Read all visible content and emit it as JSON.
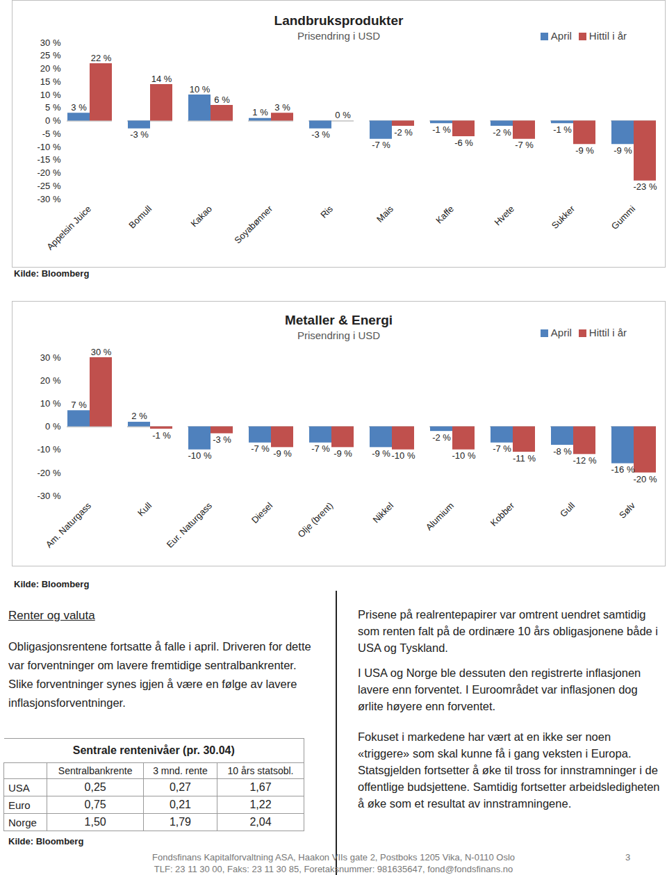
{
  "chart_data": [
    {
      "type": "bar",
      "title": "Landbruksprodukter",
      "subtitle": "Prisendring i USD",
      "categories": [
        "Appelsin Juice",
        "Bomull",
        "Kakao",
        "Soyabønner",
        "Ris",
        "Mais",
        "Kaffe",
        "Hvete",
        "Sukker",
        "Gummi"
      ],
      "series": [
        {
          "name": "April",
          "color": "#4f81bd",
          "values": [
            3,
            -3,
            10,
            1,
            -3,
            -7,
            -1,
            -2,
            -1,
            -9
          ],
          "value_labels": [
            "3 %",
            "-3 %",
            "10 %",
            "1 %",
            "-3 %",
            "-7 %",
            "-1 %",
            "-2 %",
            "-1 %",
            "-9 %"
          ]
        },
        {
          "name": "Hittil i år",
          "color": "#c0504d",
          "values": [
            22,
            14,
            6,
            3,
            0,
            -2,
            -6,
            -7,
            -9,
            -23
          ],
          "value_labels": [
            "22 %",
            "14 %",
            "6 %",
            "3 %",
            "0 %",
            "-2 %",
            "-6 %",
            "-7 %",
            "-9 %",
            "-23 %"
          ]
        }
      ],
      "ylim": [
        -30,
        30
      ],
      "yticks": [
        {
          "value": -30,
          "label": "-30 %"
        },
        {
          "value": -25,
          "label": "-25 %"
        },
        {
          "value": -20,
          "label": "-20 %"
        },
        {
          "value": -15,
          "label": "-15 %"
        },
        {
          "value": -10,
          "label": "-10 %"
        },
        {
          "value": -5,
          "label": "-5 %"
        },
        {
          "value": 0,
          "label": "0 %"
        },
        {
          "value": 5,
          "label": "5 %"
        },
        {
          "value": 10,
          "label": "10 %"
        },
        {
          "value": 15,
          "label": "15 %"
        },
        {
          "value": 20,
          "label": "20 %"
        },
        {
          "value": 25,
          "label": "25 %"
        },
        {
          "value": 30,
          "label": "30 %"
        }
      ],
      "grid": false,
      "legend": "top-right",
      "data_labels": true,
      "source": "Kilde: Bloomberg"
    },
    {
      "type": "bar",
      "title": "Metaller & Energi",
      "subtitle": "Prisendring i USD",
      "categories": [
        "Am. Naturgass",
        "Kull",
        "Eur. Naturgass",
        "Diesel",
        "Olje (brent)",
        "Nikkel",
        "Alumium",
        "Kobber",
        "Gull",
        "Sølv"
      ],
      "series": [
        {
          "name": "April",
          "color": "#4f81bd",
          "values": [
            7,
            2,
            -10,
            -7,
            -7,
            -9,
            -2,
            -7,
            -8,
            -16
          ],
          "value_labels": [
            "7 %",
            "2 %",
            "-10 %",
            "-7 %",
            "-7 %",
            "-9 %",
            "-2 %",
            "-7 %",
            "-8 %",
            "-16 %"
          ]
        },
        {
          "name": "Hittil i år",
          "color": "#c0504d",
          "values": [
            30,
            -1,
            -3,
            -9,
            -9,
            -10,
            -10,
            -11,
            -12,
            -20
          ],
          "value_labels": [
            "30 %",
            "-1 %",
            "-3 %",
            "-9 %",
            "-9 %",
            "-10 %",
            "-10 %",
            "-11 %",
            "-12 %",
            "-20 %"
          ]
        }
      ],
      "ylim": [
        -30,
        30
      ],
      "yticks": [
        {
          "value": -30,
          "label": "-30 %"
        },
        {
          "value": -20,
          "label": "-20 %"
        },
        {
          "value": -10,
          "label": "-10 %"
        },
        {
          "value": 0,
          "label": "0 %"
        },
        {
          "value": 10,
          "label": "10 %"
        },
        {
          "value": 20,
          "label": "20 %"
        },
        {
          "value": 30,
          "label": "30 %"
        }
      ],
      "grid": false,
      "legend": "top-right",
      "data_labels": true,
      "source": "Kilde: Bloomberg"
    }
  ],
  "document": {
    "section_title": "Renter og valuta",
    "left_paragraph": "Obligasjonsrentene fortsatte å falle i april. Driveren for dette var forventninger om lavere fremtidige sentralbankrenter. Slike forventninger synes igjen å være en følge av lavere inflasjonsforventninger.",
    "table": {
      "title": "Sentrale rentenivåer (pr. 30.04)",
      "header": [
        "Sentralbankrente",
        "3 mnd. rente",
        "10 års statsobl."
      ],
      "rows": [
        {
          "label": "USA",
          "values": [
            "0,25",
            "0,27",
            "1,67"
          ]
        },
        {
          "label": "Euro",
          "values": [
            "0,75",
            "0,21",
            "1,22"
          ]
        },
        {
          "label": "Norge",
          "values": [
            "1,50",
            "1,79",
            "2,04"
          ]
        }
      ],
      "source": "Kilde: Bloomberg"
    },
    "right_paragraphs": [
      "Prisene på realrentepapirer var omtrent uendret samtidig som renten falt på de ordinære 10 års obligasjonene både i USA og Tyskland.",
      "I USA og Norge ble dessuten den registrerte inflasjonen lavere enn forventet.  I Euroområdet var inflasjonen dog ørlite høyere enn forventet.",
      "Fokuset i markedene har vært at en ikke ser noen «triggere» som skal kunne få i gang veksten i Europa. Statsgjelden fortsetter å øke til tross for innstramninger i de offentlige budsjettene. Samtidig fortsetter arbeidsledigheten å øke som et resultat av innstramningene."
    ],
    "footer": [
      "Fondsfinans Kapitalforvaltning ASA, Haakon VIIs gate 2, Postboks 1205 Vika, N-0110 Oslo",
      "TLF: 23 11 30 00, Faks: 23 11 30 85, Foretaksnummer: 981635647, fond@fondsfinans.no"
    ],
    "page_number": "3"
  }
}
